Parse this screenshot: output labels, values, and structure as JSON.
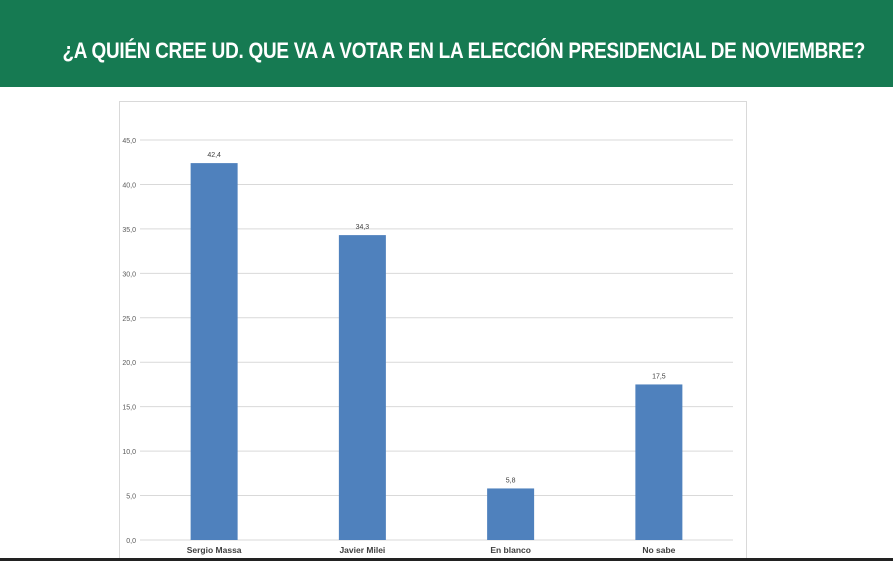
{
  "header": {
    "title": "¿A QUIÉN CREE UD. QUE VA A VOTAR EN LA ELECCIÓN PRESIDENCIAL DE NOVIEMBRE?"
  },
  "colors": {
    "header_bg": "#167a52",
    "bar": "#4f81bd",
    "grid": "#d9d9d9"
  },
  "chart_data": {
    "type": "bar",
    "title": "",
    "xlabel": "",
    "ylabel": "",
    "categories": [
      "Sergio Massa",
      "Javier Milei",
      "En blanco",
      "No sabe"
    ],
    "values": [
      42.4,
      34.3,
      5.8,
      17.5
    ],
    "value_labels": [
      "42,4",
      "34,3",
      "5,8",
      "17,5"
    ],
    "ylim": [
      0,
      45
    ],
    "yticks": [
      0,
      5,
      10,
      15,
      20,
      25,
      30,
      35,
      40,
      45
    ],
    "ytick_labels": [
      "0,0",
      "5,0",
      "10,0",
      "15,0",
      "20,0",
      "25,0",
      "30,0",
      "35,0",
      "40,0",
      "45,0"
    ],
    "grid": true,
    "legend": "none"
  }
}
